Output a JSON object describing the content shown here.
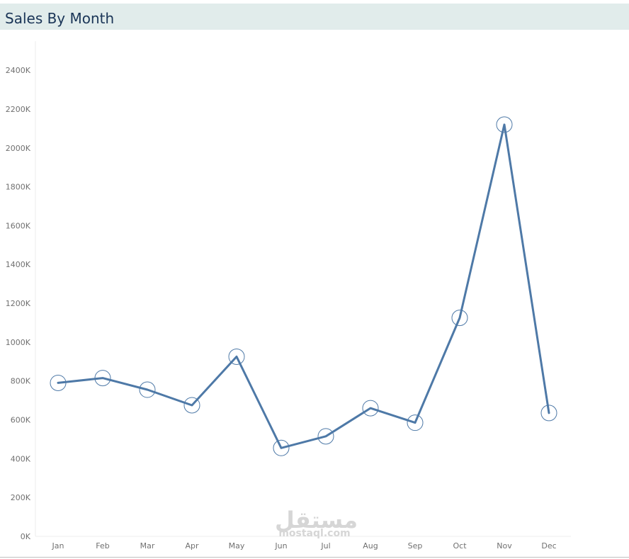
{
  "header": {
    "title": "Sales By Month"
  },
  "watermark": {
    "text": "مستقل",
    "subtext": "mostaql.com"
  },
  "colors": {
    "line": "#4e79a7",
    "title_bg": "#e1eceb",
    "title_text": "#1a3557",
    "tick_text": "#707070",
    "gridline": "#eeeeee"
  },
  "chart_data": {
    "type": "line",
    "title": "Sales By Month",
    "xlabel": "",
    "ylabel": "",
    "categories": [
      "Jan",
      "Feb",
      "Mar",
      "Apr",
      "May",
      "Jun",
      "Jul",
      "Aug",
      "Sep",
      "Oct",
      "Nov",
      "Dec"
    ],
    "series": [
      {
        "values": [
          790,
          815,
          755,
          675,
          925,
          455,
          515,
          660,
          585,
          1125,
          2120,
          635
        ],
        "markers": "circle"
      }
    ],
    "ylim": [
      0,
      2550
    ],
    "yticks": [
      0,
      200,
      400,
      600,
      800,
      1000,
      1200,
      1400,
      1600,
      1800,
      2000,
      2200,
      2400
    ],
    "ytick_labels": [
      "0K",
      "200K",
      "400K",
      "600K",
      "800K",
      "1000K",
      "1200K",
      "1400K",
      "1600K",
      "1800K",
      "2000K",
      "2200K",
      "2400K"
    ],
    "grid": false,
    "legend": "none"
  }
}
